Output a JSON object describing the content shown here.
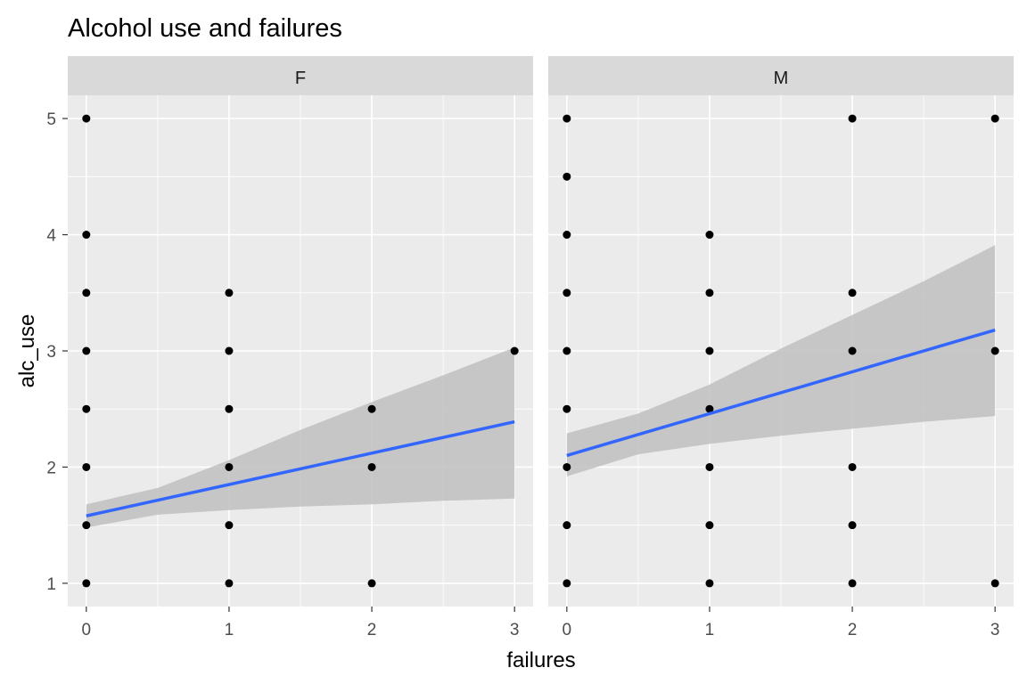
{
  "chart_data": {
    "type": "scatter",
    "title": "Alcohol use and failures",
    "xlabel": "failures",
    "ylabel": "alc_use",
    "xlim": [
      -0.13,
      3.13
    ],
    "ylim": [
      0.8,
      5.2
    ],
    "x_ticks": [
      0,
      1,
      2,
      3
    ],
    "y_ticks": [
      1,
      2,
      3,
      4,
      5
    ],
    "grid": true,
    "smooth": "linear fit with confidence band",
    "colors": {
      "panel_bg": "#ebebeb",
      "strip_bg": "#d9d9d9",
      "grid": "#ffffff",
      "points": "#000000",
      "fit_line": "#3366ff",
      "ribbon": "#bfbfbf"
    },
    "facets": [
      {
        "label": "F",
        "points": [
          [
            0,
            1
          ],
          [
            0,
            1.5
          ],
          [
            0,
            2
          ],
          [
            0,
            2.5
          ],
          [
            0,
            3
          ],
          [
            0,
            3.5
          ],
          [
            0,
            4
          ],
          [
            0,
            5
          ],
          [
            1,
            1
          ],
          [
            1,
            1.5
          ],
          [
            1,
            2
          ],
          [
            1,
            2.5
          ],
          [
            1,
            3
          ],
          [
            1,
            3.5
          ],
          [
            2,
            1
          ],
          [
            2,
            2
          ],
          [
            2,
            2.5
          ],
          [
            3,
            3
          ]
        ],
        "fit": {
          "x": [
            0,
            3
          ],
          "y": [
            1.58,
            2.39
          ]
        },
        "band": {
          "x": [
            0,
            0.5,
            1,
            1.5,
            2,
            2.5,
            3
          ],
          "lower": [
            1.48,
            1.59,
            1.63,
            1.66,
            1.68,
            1.71,
            1.73
          ],
          "upper": [
            1.68,
            1.82,
            2.06,
            2.32,
            2.56,
            2.79,
            3.03
          ]
        }
      },
      {
        "label": "M",
        "points": [
          [
            0,
            1
          ],
          [
            0,
            1.5
          ],
          [
            0,
            2
          ],
          [
            0,
            2.5
          ],
          [
            0,
            3
          ],
          [
            0,
            3.5
          ],
          [
            0,
            4
          ],
          [
            0,
            4.5
          ],
          [
            0,
            5
          ],
          [
            1,
            1
          ],
          [
            1,
            1.5
          ],
          [
            1,
            2
          ],
          [
            1,
            2.5
          ],
          [
            1,
            3
          ],
          [
            1,
            3.5
          ],
          [
            1,
            4
          ],
          [
            2,
            1
          ],
          [
            2,
            1.5
          ],
          [
            2,
            2
          ],
          [
            2,
            3
          ],
          [
            2,
            3.5
          ],
          [
            2,
            5
          ],
          [
            3,
            1
          ],
          [
            3,
            3
          ],
          [
            3,
            5
          ]
        ],
        "fit": {
          "x": [
            0,
            3
          ],
          "y": [
            2.1,
            3.18
          ]
        },
        "band": {
          "x": [
            0,
            0.5,
            1,
            1.5,
            2,
            2.5,
            3
          ],
          "lower": [
            1.92,
            2.11,
            2.2,
            2.27,
            2.33,
            2.39,
            2.44
          ],
          "upper": [
            2.29,
            2.46,
            2.71,
            3.02,
            3.31,
            3.6,
            3.91
          ]
        }
      }
    ]
  }
}
